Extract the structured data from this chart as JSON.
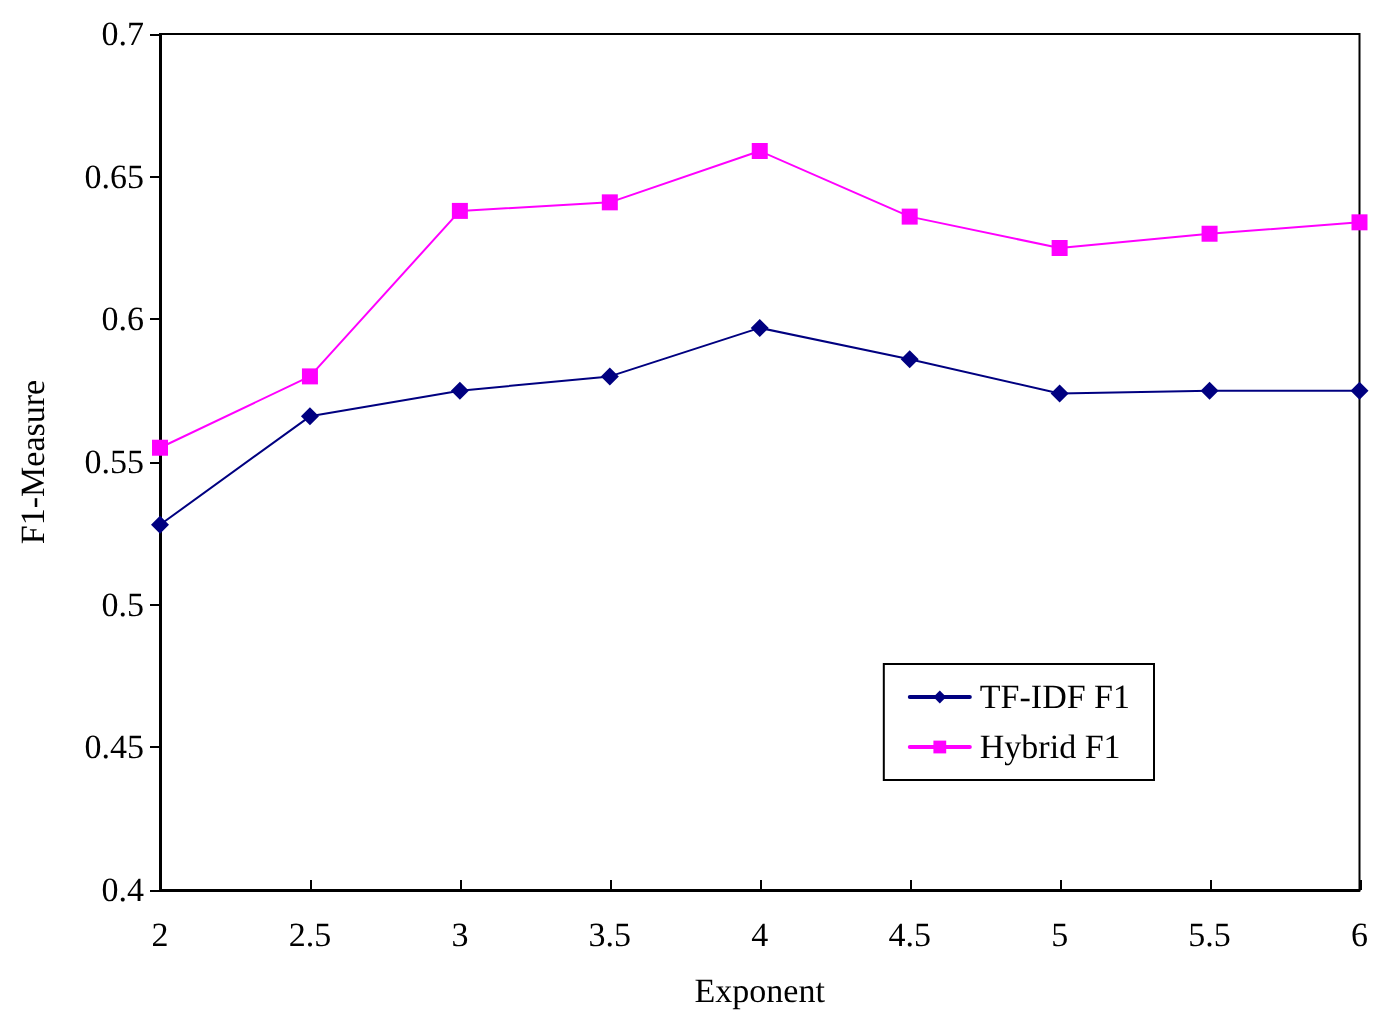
{
  "chart_data": {
    "type": "line",
    "xlabel": "Exponent",
    "ylabel": "F1-Measure",
    "x": [
      2,
      2.5,
      3,
      3.5,
      4,
      4.5,
      5,
      5.5,
      6
    ],
    "series": [
      {
        "name": "TF-IDF F1",
        "color": "#000080",
        "marker": "diamond",
        "values": [
          0.528,
          0.566,
          0.575,
          0.58,
          0.597,
          0.586,
          0.574,
          0.575,
          0.575
        ]
      },
      {
        "name": "Hybrid F1",
        "color": "#ff00ff",
        "marker": "square",
        "values": [
          0.555,
          0.58,
          0.638,
          0.641,
          0.659,
          0.636,
          0.625,
          0.63,
          0.634
        ]
      }
    ],
    "xlim": [
      2,
      6
    ],
    "xticks": [
      2,
      2.5,
      3,
      3.5,
      4,
      4.5,
      5,
      5.5,
      6
    ],
    "ylim": [
      0.4,
      0.7
    ],
    "yticks": [
      0.4,
      0.45,
      0.5,
      0.55,
      0.6,
      0.65,
      0.7
    ],
    "grid": false,
    "legend": "bottom right",
    "line_style": "solid"
  }
}
